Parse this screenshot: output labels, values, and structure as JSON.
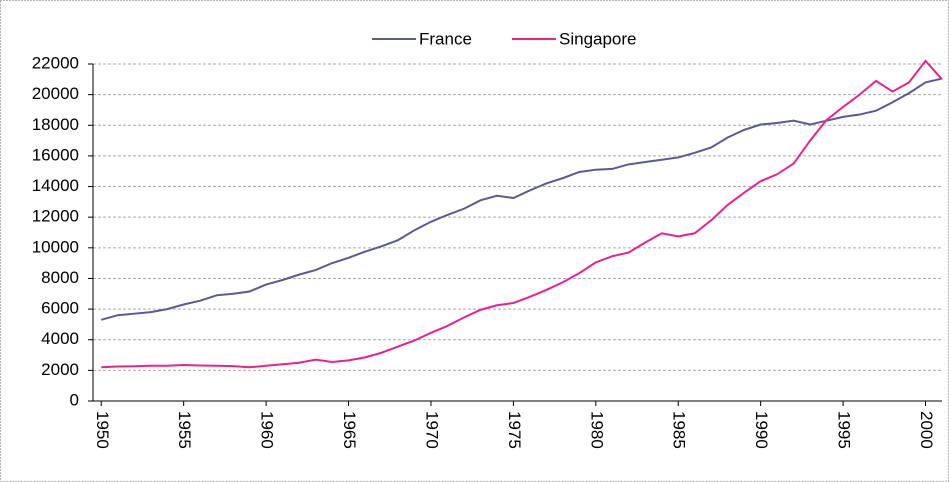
{
  "chart_data": {
    "type": "line",
    "x": [
      1950,
      1951,
      1952,
      1953,
      1954,
      1955,
      1956,
      1957,
      1958,
      1959,
      1960,
      1961,
      1962,
      1963,
      1964,
      1965,
      1966,
      1967,
      1968,
      1969,
      1970,
      1971,
      1972,
      1973,
      1974,
      1975,
      1976,
      1977,
      1978,
      1979,
      1980,
      1981,
      1982,
      1983,
      1984,
      1985,
      1986,
      1987,
      1988,
      1989,
      1990,
      1991,
      1992,
      1993,
      1994,
      1995,
      1996,
      1997,
      1998,
      1999,
      2000,
      2001
    ],
    "series": [
      {
        "name": "France",
        "color": "#5c5a8e",
        "values": [
          5300,
          5600,
          5700,
          5800,
          6000,
          6300,
          6550,
          6900,
          7000,
          7150,
          7600,
          7900,
          8250,
          8550,
          9000,
          9350,
          9750,
          10100,
          10500,
          11150,
          11700,
          12150,
          12550,
          13100,
          13400,
          13250,
          13750,
          14200,
          14550,
          14950,
          15100,
          15150,
          15450,
          15600,
          15750,
          15900,
          16200,
          16550,
          17200,
          17700,
          18050,
          18150,
          18300,
          18050,
          18300,
          18550,
          18700,
          18950,
          19500,
          20100,
          20800,
          21050
        ]
      },
      {
        "name": "Singapore",
        "color": "#e8238c",
        "values": [
          2200,
          2250,
          2270,
          2300,
          2300,
          2350,
          2320,
          2300,
          2280,
          2200,
          2300,
          2400,
          2500,
          2700,
          2550,
          2650,
          2850,
          3150,
          3550,
          3950,
          4450,
          4900,
          5450,
          5950,
          6250,
          6400,
          6800,
          7250,
          7750,
          8350,
          9050,
          9450,
          9700,
          10350,
          10950,
          10750,
          10950,
          11800,
          12800,
          13600,
          14350,
          14800,
          15500,
          17000,
          18350,
          19200,
          20000,
          20900,
          20200,
          20800,
          22200,
          21000
        ]
      }
    ],
    "xlim": [
      1949.5,
      2001
    ],
    "xticks": [
      1950,
      1955,
      1960,
      1965,
      1970,
      1975,
      1980,
      1985,
      1990,
      1995,
      2000
    ],
    "ylim": [
      0,
      22000
    ],
    "yticks": [
      0,
      2000,
      4000,
      6000,
      8000,
      10000,
      12000,
      14000,
      16000,
      18000,
      20000,
      22000
    ],
    "grid": true,
    "legend": "top"
  }
}
